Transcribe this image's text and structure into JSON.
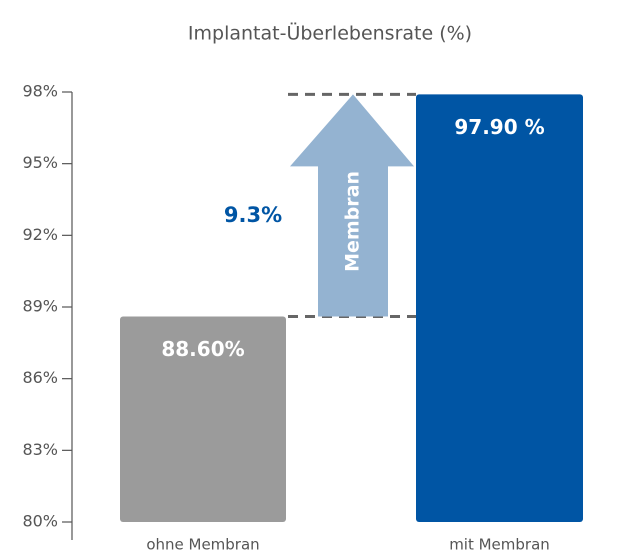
{
  "chart_data": {
    "type": "bar",
    "title": "Implantat-Überlebensrate (%)",
    "categories": [
      "ohne Membran",
      "mit Membran"
    ],
    "values": [
      88.6,
      97.9
    ],
    "value_labels": [
      "88.60%",
      "97.90 %"
    ],
    "colors": [
      "#9b9b9b",
      "#0055a4"
    ],
    "ylim": [
      80,
      98
    ],
    "yticks": [
      {
        "value": 80,
        "label": "80%"
      },
      {
        "value": 83,
        "label": "83%"
      },
      {
        "value": 86,
        "label": "86%"
      },
      {
        "value": 89,
        "label": "89%"
      },
      {
        "value": 92,
        "label": "92%"
      },
      {
        "value": 95,
        "label": "95%"
      },
      {
        "value": 98,
        "label": "98%"
      }
    ],
    "annotations": {
      "difference": "9.3%",
      "arrow_label": "Membran"
    },
    "arrow_color": "#94b3d1"
  }
}
